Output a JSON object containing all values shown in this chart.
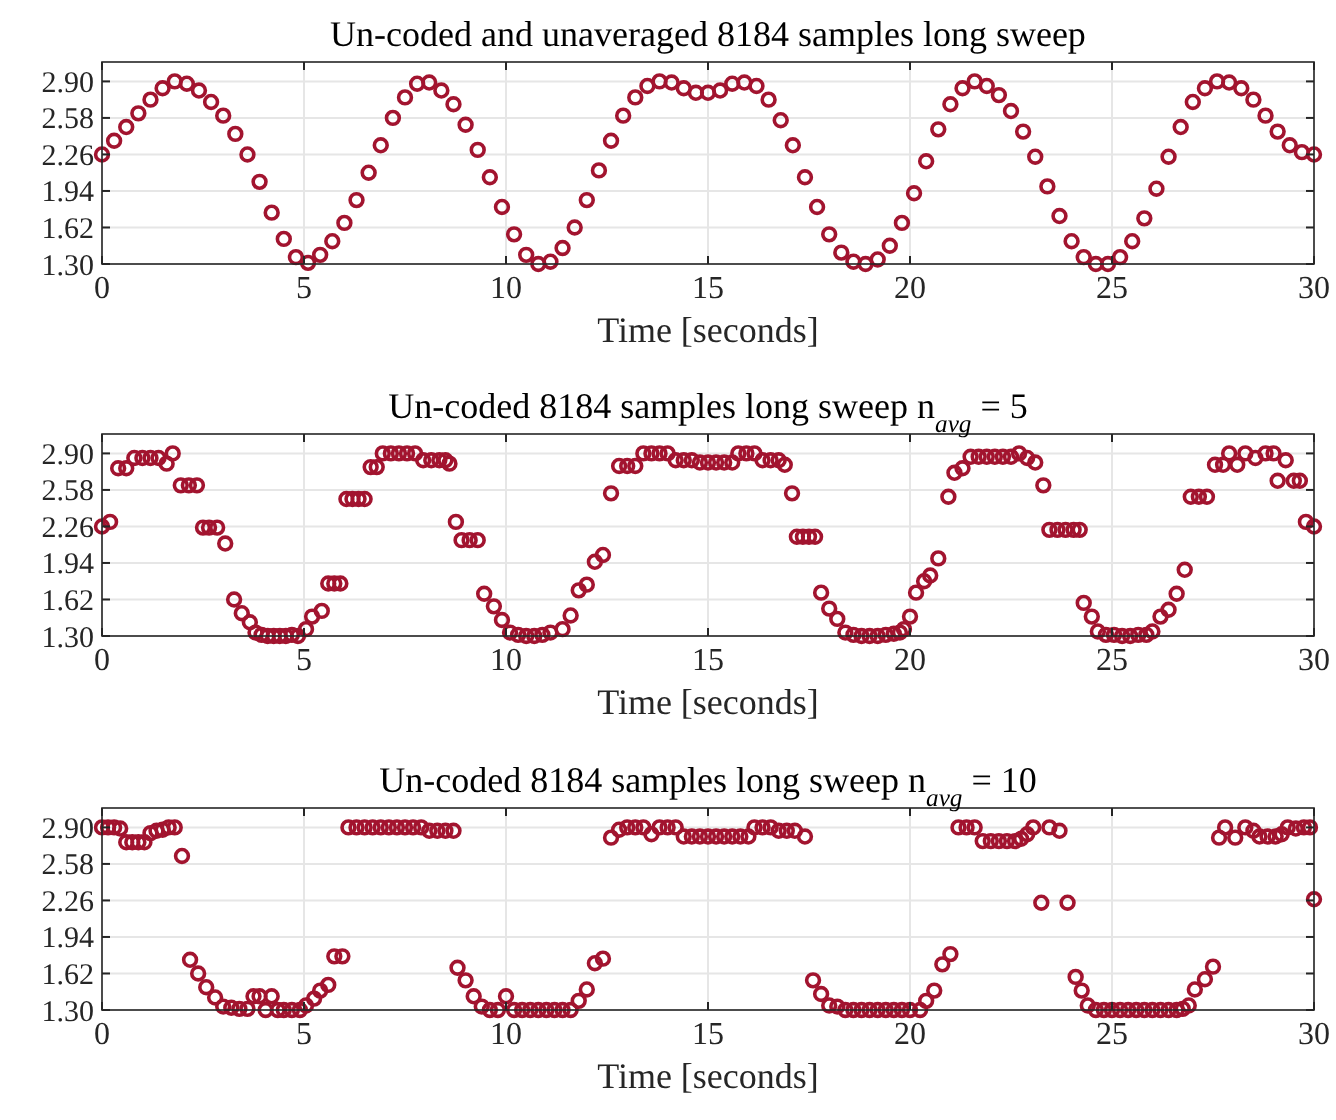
{
  "chart_data": [
    {
      "type": "scatter",
      "title": "Un-coded and unaveraged 8184 samples long sweep",
      "xlabel": "Time [seconds]",
      "marker": "circle",
      "grid": true,
      "xlim": [
        0,
        30
      ],
      "ylim": [
        1.3,
        3.07
      ],
      "xticks": [
        0,
        5,
        10,
        15,
        20,
        25,
        30
      ],
      "yticks": [
        {
          "value": 1.3,
          "label": "1.30"
        },
        {
          "value": 1.62,
          "label": "1.62"
        },
        {
          "value": 1.94,
          "label": "1.94"
        },
        {
          "value": 2.26,
          "label": "2.26"
        },
        {
          "value": 2.58,
          "label": "2.58"
        },
        {
          "value": 2.9,
          "label": "2.90"
        }
      ],
      "series": [
        {
          "color": "#a2142f",
          "x": [
            0,
            0.3,
            0.6,
            0.9,
            1.2,
            1.5,
            1.8,
            2.1,
            2.4,
            2.7,
            3.0,
            3.3,
            3.6,
            3.9,
            4.2,
            4.5,
            4.8,
            5.1,
            5.4,
            5.7,
            6.0,
            6.3,
            6.6,
            6.9,
            7.2,
            7.5,
            7.8,
            8.1,
            8.4,
            8.7,
            9.0,
            9.3,
            9.6,
            9.9,
            10.2,
            10.5,
            10.8,
            11.1,
            11.4,
            11.7,
            12.0,
            12.3,
            12.6,
            12.9,
            13.2,
            13.5,
            13.8,
            14.1,
            14.4,
            14.7,
            15.0,
            15.3,
            15.6,
            15.9,
            16.2,
            16.5,
            16.8,
            17.1,
            17.4,
            17.7,
            18.0,
            18.3,
            18.6,
            18.9,
            19.2,
            19.5,
            19.8,
            20.1,
            20.4,
            20.7,
            21.0,
            21.3,
            21.6,
            21.9,
            22.2,
            22.5,
            22.8,
            23.1,
            23.4,
            23.7,
            24.0,
            24.3,
            24.6,
            24.9,
            25.2,
            25.5,
            25.8,
            26.1,
            26.4,
            26.7,
            27.0,
            27.3,
            27.6,
            27.9,
            28.2,
            28.5,
            28.8,
            29.1,
            29.4,
            29.7,
            30.0
          ],
          "values": [
            2.26,
            2.38,
            2.5,
            2.62,
            2.74,
            2.84,
            2.9,
            2.88,
            2.82,
            2.72,
            2.6,
            2.44,
            2.26,
            2.02,
            1.75,
            1.52,
            1.36,
            1.31,
            1.38,
            1.5,
            1.66,
            1.86,
            2.1,
            2.34,
            2.58,
            2.76,
            2.88,
            2.89,
            2.82,
            2.7,
            2.52,
            2.3,
            2.06,
            1.8,
            1.56,
            1.38,
            1.3,
            1.32,
            1.44,
            1.62,
            1.86,
            2.12,
            2.38,
            2.6,
            2.76,
            2.86,
            2.9,
            2.89,
            2.84,
            2.8,
            2.8,
            2.82,
            2.88,
            2.89,
            2.86,
            2.74,
            2.56,
            2.34,
            2.06,
            1.8,
            1.56,
            1.4,
            1.32,
            1.3,
            1.34,
            1.46,
            1.66,
            1.92,
            2.2,
            2.48,
            2.7,
            2.84,
            2.9,
            2.86,
            2.78,
            2.64,
            2.46,
            2.24,
            1.98,
            1.72,
            1.5,
            1.36,
            1.3,
            1.3,
            1.36,
            1.5,
            1.7,
            1.96,
            2.24,
            2.5,
            2.72,
            2.84,
            2.9,
            2.89,
            2.84,
            2.74,
            2.6,
            2.46,
            2.34,
            2.28,
            2.26
          ]
        }
      ]
    },
    {
      "type": "scatter",
      "title": "Un-coded 8184 samples long sweep n$_{avg}$ = 5",
      "xlabel": "Time [seconds]",
      "marker": "circle",
      "grid": true,
      "xlim": [
        0,
        30
      ],
      "ylim": [
        1.3,
        3.07
      ],
      "xticks": [
        0,
        5,
        10,
        15,
        20,
        25,
        30
      ],
      "yticks": [
        {
          "value": 1.3,
          "label": "1.30"
        },
        {
          "value": 1.62,
          "label": "1.62"
        },
        {
          "value": 1.94,
          "label": "1.94"
        },
        {
          "value": 2.26,
          "label": "2.26"
        },
        {
          "value": 2.58,
          "label": "2.58"
        },
        {
          "value": 2.9,
          "label": "2.90"
        }
      ],
      "series": [
        {
          "color": "#a2142f",
          "x": [
            0,
            0.2,
            0.4,
            0.6,
            0.8,
            1.0,
            1.2,
            1.4,
            1.6,
            1.75,
            1.95,
            2.15,
            2.35,
            2.5,
            2.65,
            2.85,
            3.05,
            3.27,
            3.46,
            3.66,
            3.8,
            3.95,
            4.1,
            4.25,
            4.4,
            4.55,
            4.7,
            4.85,
            5.05,
            5.2,
            5.44,
            5.6,
            5.75,
            5.9,
            6.05,
            6.2,
            6.35,
            6.5,
            6.65,
            6.8,
            6.95,
            7.15,
            7.35,
            7.55,
            7.75,
            7.95,
            8.15,
            8.35,
            8.5,
            8.6,
            8.76,
            8.9,
            9.1,
            9.3,
            9.46,
            9.7,
            9.9,
            10.1,
            10.3,
            10.5,
            10.7,
            10.9,
            11.1,
            11.4,
            11.6,
            11.8,
            12.0,
            12.2,
            12.4,
            12.6,
            12.8,
            13.0,
            13.2,
            13.4,
            13.6,
            13.8,
            14.0,
            14.2,
            14.4,
            14.6,
            14.8,
            15.0,
            15.2,
            15.4,
            15.6,
            15.75,
            15.95,
            16.15,
            16.35,
            16.55,
            16.75,
            16.9,
            17.08,
            17.2,
            17.35,
            17.5,
            17.65,
            17.8,
            18.0,
            18.2,
            18.4,
            18.6,
            18.8,
            19.0,
            19.2,
            19.4,
            19.6,
            19.75,
            19.85,
            20.0,
            20.15,
            20.35,
            20.5,
            20.7,
            20.95,
            21.1,
            21.3,
            21.5,
            21.7,
            21.9,
            22.1,
            22.3,
            22.5,
            22.7,
            22.9,
            23.1,
            23.3,
            23.45,
            23.65,
            23.85,
            24.05,
            24.2,
            24.3,
            24.5,
            24.65,
            24.85,
            25.05,
            25.25,
            25.45,
            25.65,
            25.85,
            26.0,
            26.2,
            26.4,
            26.6,
            26.8,
            26.95,
            27.15,
            27.35,
            27.55,
            27.75,
            27.9,
            28.1,
            28.3,
            28.55,
            28.8,
            29.0,
            29.1,
            29.3,
            29.5,
            29.65,
            29.8,
            30
          ],
          "values": [
            2.26,
            2.3,
            2.77,
            2.77,
            2.86,
            2.86,
            2.86,
            2.86,
            2.81,
            2.9,
            2.62,
            2.62,
            2.62,
            2.25,
            2.25,
            2.25,
            2.11,
            1.62,
            1.5,
            1.42,
            1.33,
            1.31,
            1.3,
            1.3,
            1.3,
            1.3,
            1.31,
            1.3,
            1.36,
            1.47,
            1.52,
            1.76,
            1.76,
            1.76,
            2.5,
            2.5,
            2.5,
            2.5,
            2.78,
            2.78,
            2.9,
            2.9,
            2.9,
            2.9,
            2.9,
            2.84,
            2.84,
            2.84,
            2.84,
            2.81,
            2.3,
            2.14,
            2.14,
            2.14,
            1.67,
            1.56,
            1.44,
            1.33,
            1.31,
            1.3,
            1.3,
            1.31,
            1.33,
            1.36,
            1.48,
            1.7,
            1.75,
            1.95,
            2.01,
            2.55,
            2.79,
            2.79,
            2.79,
            2.9,
            2.9,
            2.9,
            2.9,
            2.84,
            2.84,
            2.84,
            2.82,
            2.82,
            2.82,
            2.82,
            2.82,
            2.9,
            2.9,
            2.9,
            2.84,
            2.84,
            2.84,
            2.8,
            2.55,
            2.17,
            2.17,
            2.17,
            2.17,
            1.68,
            1.54,
            1.45,
            1.33,
            1.31,
            1.3,
            1.3,
            1.3,
            1.31,
            1.32,
            1.33,
            1.36,
            1.47,
            1.68,
            1.78,
            1.83,
            1.98,
            2.52,
            2.73,
            2.77,
            2.87,
            2.87,
            2.87,
            2.87,
            2.87,
            2.87,
            2.9,
            2.86,
            2.82,
            2.62,
            2.23,
            2.23,
            2.23,
            2.23,
            2.23,
            1.59,
            1.47,
            1.34,
            1.31,
            1.31,
            1.3,
            1.3,
            1.31,
            1.31,
            1.34,
            1.47,
            1.53,
            1.67,
            1.88,
            2.52,
            2.52,
            2.52,
            2.8,
            2.8,
            2.9,
            2.8,
            2.9,
            2.86,
            2.9,
            2.9,
            2.66,
            2.84,
            2.66,
            2.66,
            2.3,
            2.26
          ]
        }
      ]
    },
    {
      "type": "scatter",
      "title": "Un-coded 8184 samples long sweep n$_{avg}$ = 10",
      "xlabel": "Time [seconds]",
      "marker": "circle",
      "grid": true,
      "xlim": [
        0,
        30
      ],
      "ylim": [
        1.3,
        3.07
      ],
      "xticks": [
        0,
        5,
        10,
        15,
        20,
        25,
        30
      ],
      "yticks": [
        {
          "value": 1.3,
          "label": "1.30"
        },
        {
          "value": 1.62,
          "label": "1.62"
        },
        {
          "value": 1.94,
          "label": "1.94"
        },
        {
          "value": 2.26,
          "label": "2.26"
        },
        {
          "value": 2.58,
          "label": "2.58"
        },
        {
          "value": 2.9,
          "label": "2.90"
        }
      ],
      "series": [
        {
          "color": "#a2142f",
          "x": [
            0,
            0.15,
            0.3,
            0.45,
            0.6,
            0.75,
            0.9,
            1.05,
            1.2,
            1.35,
            1.5,
            1.65,
            1.8,
            1.98,
            2.18,
            2.38,
            2.58,
            2.8,
            3.0,
            3.2,
            3.4,
            3.6,
            3.75,
            3.9,
            4.05,
            4.2,
            4.35,
            4.5,
            4.7,
            4.9,
            5.05,
            5.25,
            5.4,
            5.6,
            5.75,
            5.95,
            6.1,
            6.3,
            6.5,
            6.7,
            6.9,
            7.1,
            7.3,
            7.5,
            7.7,
            7.9,
            8.1,
            8.3,
            8.5,
            8.7,
            8.8,
            9.0,
            9.2,
            9.4,
            9.6,
            9.8,
            10.0,
            10.2,
            10.4,
            10.6,
            10.8,
            11.0,
            11.2,
            11.4,
            11.6,
            11.8,
            12.0,
            12.2,
            12.4,
            12.6,
            12.8,
            13.0,
            13.2,
            13.4,
            13.6,
            13.8,
            14.0,
            14.2,
            14.4,
            14.6,
            14.8,
            15.0,
            15.2,
            15.4,
            15.6,
            15.8,
            16.0,
            16.15,
            16.35,
            16.55,
            16.75,
            16.95,
            17.15,
            17.4,
            17.6,
            17.8,
            18.0,
            18.2,
            18.4,
            18.6,
            18.8,
            19.0,
            19.2,
            19.4,
            19.6,
            19.8,
            20.0,
            20.25,
            20.4,
            20.6,
            20.8,
            21.0,
            21.2,
            21.4,
            21.6,
            21.8,
            22.0,
            22.2,
            22.4,
            22.6,
            22.75,
            22.9,
            23.05,
            23.25,
            23.45,
            23.7,
            23.9,
            24.1,
            24.25,
            24.4,
            24.6,
            24.8,
            25.0,
            25.2,
            25.4,
            25.6,
            25.8,
            26.0,
            26.2,
            26.4,
            26.6,
            26.75,
            26.9,
            27.05,
            27.3,
            27.5,
            27.65,
            27.8,
            28.05,
            28.3,
            28.5,
            28.65,
            28.85,
            29.05,
            29.2,
            29.35,
            29.55,
            29.75,
            29.9,
            30
          ],
          "values": [
            2.9,
            2.9,
            2.9,
            2.89,
            2.77,
            2.77,
            2.77,
            2.77,
            2.85,
            2.87,
            2.88,
            2.9,
            2.9,
            2.65,
            1.74,
            1.62,
            1.5,
            1.41,
            1.33,
            1.32,
            1.31,
            1.31,
            1.42,
            1.42,
            1.3,
            1.42,
            1.3,
            1.3,
            1.3,
            1.3,
            1.34,
            1.4,
            1.47,
            1.52,
            1.77,
            1.77,
            2.9,
            2.9,
            2.9,
            2.9,
            2.9,
            2.9,
            2.9,
            2.9,
            2.9,
            2.9,
            2.87,
            2.87,
            2.87,
            2.87,
            1.67,
            1.56,
            1.42,
            1.33,
            1.3,
            1.3,
            1.42,
            1.3,
            1.3,
            1.3,
            1.3,
            1.3,
            1.3,
            1.3,
            1.3,
            1.38,
            1.48,
            1.71,
            1.75,
            2.81,
            2.88,
            2.9,
            2.9,
            2.9,
            2.84,
            2.9,
            2.9,
            2.9,
            2.82,
            2.82,
            2.82,
            2.82,
            2.82,
            2.82,
            2.82,
            2.82,
            2.82,
            2.9,
            2.9,
            2.9,
            2.87,
            2.87,
            2.87,
            2.82,
            1.56,
            1.44,
            1.34,
            1.33,
            1.3,
            1.3,
            1.3,
            1.3,
            1.3,
            1.3,
            1.3,
            1.3,
            1.3,
            1.3,
            1.38,
            1.47,
            1.7,
            1.79,
            2.9,
            2.9,
            2.9,
            2.78,
            2.78,
            2.78,
            2.78,
            2.78,
            2.8,
            2.84,
            2.9,
            2.24,
            2.9,
            2.87,
            2.24,
            1.59,
            1.47,
            1.34,
            1.3,
            1.3,
            1.3,
            1.3,
            1.3,
            1.3,
            1.3,
            1.3,
            1.3,
            1.3,
            1.3,
            1.31,
            1.34,
            1.48,
            1.57,
            1.68,
            2.81,
            2.9,
            2.81,
            2.9,
            2.87,
            2.82,
            2.82,
            2.82,
            2.84,
            2.9,
            2.89,
            2.9,
            2.9,
            2.27
          ]
        }
      ]
    }
  ]
}
